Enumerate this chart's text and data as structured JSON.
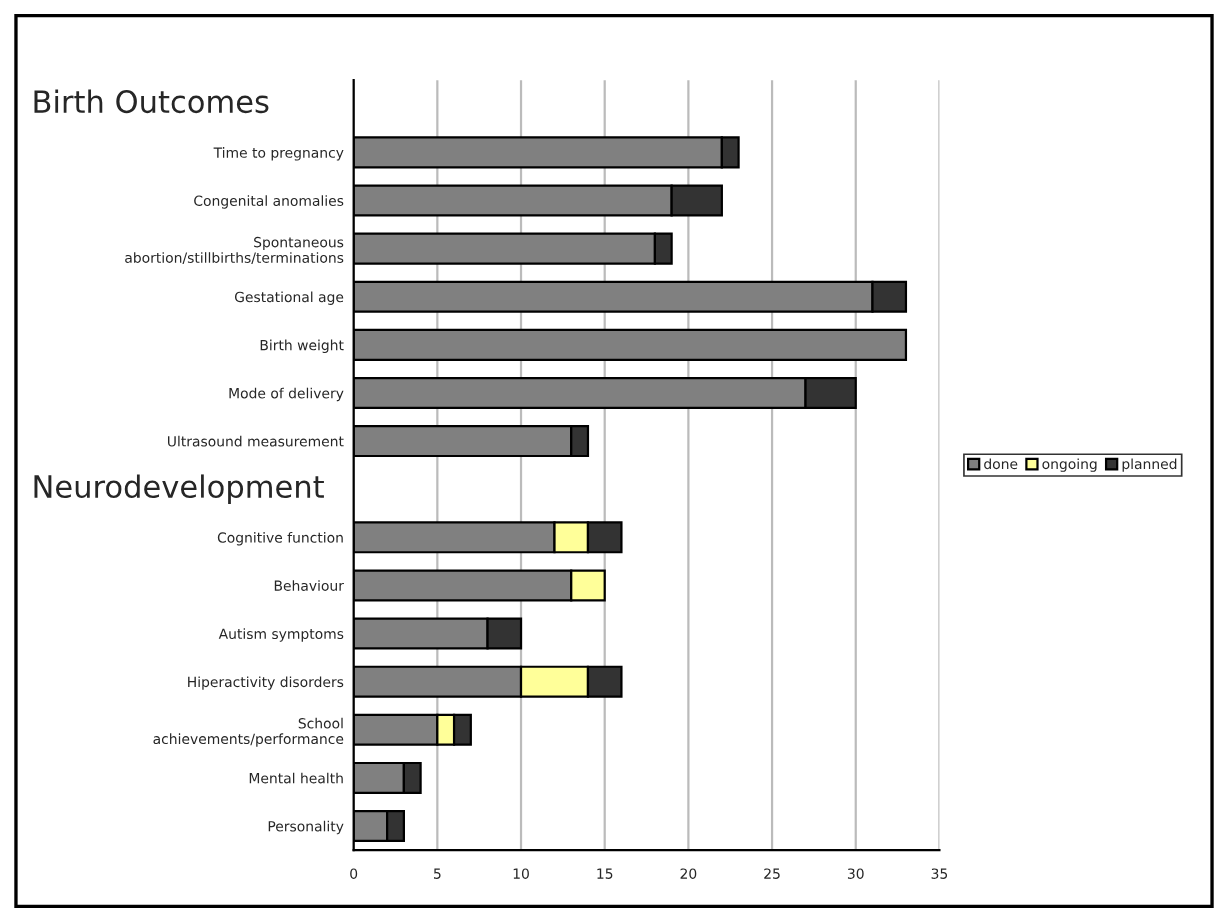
{
  "chart_data": {
    "type": "bar",
    "orientation": "horizontal",
    "stacked": true,
    "categories": [
      null,
      "Time to pregnancy",
      "Congenital anomalies",
      "Spontaneous\nabortion/stillbirths/terminations",
      "Gestational age",
      "Birth weight",
      "Mode of delivery",
      "Ultrasound measurement",
      null,
      "Cognitive function",
      "Behaviour",
      "Autism symptoms",
      "Hiperactivity disorders",
      "School\nachievements/performance",
      "Mental health",
      "Personality"
    ],
    "annotations": [
      "Birth Outcomes",
      "Neurodevelopment"
    ],
    "series": [
      {
        "name": "done",
        "color": "#808080",
        "values": [
          null,
          22,
          19,
          18,
          31,
          33,
          27,
          13,
          null,
          12,
          13,
          8,
          10,
          5,
          3,
          2
        ]
      },
      {
        "name": "ongoing",
        "color": "#ffff99",
        "values": [
          null,
          null,
          null,
          null,
          null,
          null,
          null,
          null,
          null,
          2,
          2,
          null,
          4,
          1,
          null,
          null
        ]
      },
      {
        "name": "planned",
        "color": "#333333",
        "values": [
          null,
          1,
          3,
          1,
          2,
          null,
          3,
          1,
          null,
          2,
          null,
          2,
          2,
          1,
          1,
          1
        ]
      }
    ],
    "xlim": [
      0,
      35
    ],
    "xticks": [
      0,
      5,
      10,
      15,
      20,
      25,
      30,
      35
    ],
    "grid": "x",
    "legend": "right"
  }
}
